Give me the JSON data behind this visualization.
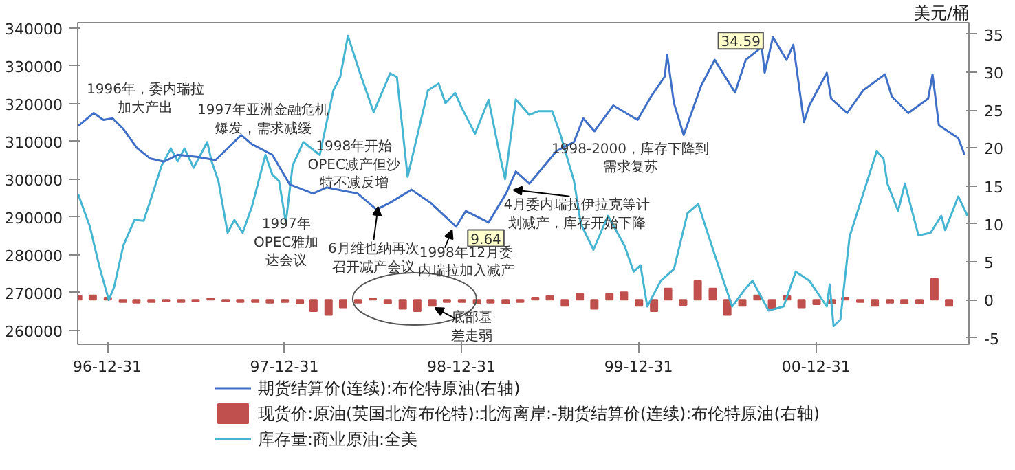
{
  "chart_data": {
    "type": "line",
    "xlim": [
      "1996-10-31",
      "2001-11-11"
    ],
    "xticks": [
      {
        "value": "1996-12-31",
        "label": "96-12-31"
      },
      {
        "value": "1997-12-31",
        "label": "97-12-31"
      },
      {
        "value": "1998-12-31",
        "label": "98-12-31"
      },
      {
        "value": "1999-12-31",
        "label": "99-12-31"
      },
      {
        "value": "2000-12-31",
        "label": "00-12-31"
      }
    ],
    "ylim": [
      256300,
      341400
    ],
    "yticks": [
      260000,
      270000,
      280000,
      290000,
      300000,
      310000,
      320000,
      330000,
      340000
    ],
    "y2lim": [
      -5.85,
      36.5
    ],
    "y2ticks": [
      -5,
      0,
      5,
      10,
      15,
      20,
      25,
      30,
      35
    ],
    "y2label": "美元/桶",
    "grid": false,
    "legend": "bottom",
    "series": [
      {
        "name": "期货结算价(连续):布伦特原油(右轴)",
        "axis": "y2",
        "color": "#3f6fc6",
        "x": [
          "1996-11-01",
          "1996-12-03",
          "1996-12-23",
          "1997-01-11",
          "1997-02-02",
          "1997-03-02",
          "1997-03-30",
          "1997-04-27",
          "1997-05-25",
          "1997-07-06",
          "1997-08-11",
          "1997-10-03",
          "1997-10-25",
          "1997-12-06",
          "1998-01-11",
          "1998-02-28",
          "1998-03-28",
          "1998-05-31",
          "1998-07-09",
          "1998-08-06",
          "1998-09-19",
          "1998-10-28",
          "1998-12-20",
          "1999-01-09",
          "1999-02-25",
          "1999-04-02",
          "1999-04-22",
          "1999-05-20",
          "1999-07-15",
          "1999-08-20",
          "1999-09-08",
          "1999-10-01",
          "1999-11-09",
          "1999-12-29",
          "2000-01-26",
          "2000-02-23",
          "2000-02-28",
          "2000-03-13",
          "2000-04-02",
          "2000-05-08",
          "2000-06-05",
          "2000-07-17",
          "2000-08-08",
          "2000-09-10",
          "2000-09-16",
          "2000-10-03",
          "2000-10-31",
          "2000-11-14",
          "2000-12-06",
          "2000-12-17",
          "2001-01-22",
          "2001-01-31",
          "2001-03-05",
          "2001-04-07",
          "2001-05-22",
          "2001-06-05",
          "2001-07-09",
          "2001-08-19",
          "2001-08-28",
          "2001-09-10",
          "2001-10-20",
          "2001-11-02"
        ],
        "values": [
          22.9,
          24.6,
          23.7,
          23.9,
          22.5,
          20.0,
          18.6,
          18.2,
          19.1,
          18.8,
          18.4,
          21.7,
          20.5,
          19.1,
          15.2,
          14.0,
          14.8,
          14.0,
          11.9,
          12.8,
          14.5,
          12.8,
          9.64,
          11.7,
          10.2,
          14.0,
          16.9,
          15.3,
          19.6,
          20.8,
          23.9,
          22.2,
          25.6,
          23.7,
          26.8,
          29.4,
          32.3,
          25.9,
          21.7,
          28.2,
          31.6,
          27.3,
          31.6,
          33.3,
          29.9,
          34.59,
          31.6,
          33.6,
          23.4,
          25.6,
          29.9,
          26.5,
          24.6,
          27.6,
          29.7,
          26.8,
          24.6,
          26.5,
          29.7,
          23.0,
          21.3,
          19.1
        ]
      },
      {
        "name": "现货价:原油(英国北海布伦特):北海离岸:-期货结算价(连续):布伦特原油(右轴)",
        "type": "bar",
        "axis": "y2",
        "color": "#c0504d",
        "x": [
          "1996-11",
          "1996-12",
          "1997-01",
          "1997-02",
          "1997-03",
          "1997-04",
          "1997-05",
          "1997-06",
          "1997-07",
          "1997-08",
          "1997-09",
          "1997-10",
          "1997-11",
          "1997-12",
          "1998-01",
          "1998-02",
          "1998-03",
          "1998-04",
          "1998-05",
          "1998-06",
          "1998-07",
          "1998-08",
          "1998-09",
          "1998-10",
          "1998-11",
          "1998-12",
          "1999-01",
          "1999-02",
          "1999-03",
          "1999-04",
          "1999-05",
          "1999-06",
          "1999-07",
          "1999-08",
          "1999-09",
          "1999-10",
          "1999-11",
          "1999-12",
          "2000-01",
          "2000-02",
          "2000-03",
          "2000-04",
          "2000-05",
          "2000-06",
          "2000-07",
          "2000-08",
          "2000-09",
          "2000-10",
          "2000-11",
          "2000-12",
          "2001-01",
          "2001-02",
          "2001-03",
          "2001-04",
          "2001-05",
          "2001-06",
          "2001-07",
          "2001-08",
          "2001-09",
          "2001-10"
        ],
        "values": [
          0.5,
          0.6,
          0.3,
          -0.3,
          -0.4,
          -0.3,
          -0.2,
          -0.3,
          -0.2,
          0.2,
          -0.2,
          -0.3,
          -0.3,
          -0.4,
          -0.3,
          -0.5,
          -1.5,
          -2.0,
          -1.0,
          -0.4,
          0.2,
          -0.5,
          -1.2,
          -1.5,
          -0.8,
          -0.3,
          -0.3,
          -0.5,
          -0.4,
          -0.5,
          -0.3,
          0.3,
          0.5,
          -0.8,
          0.8,
          -1.2,
          0.8,
          1.0,
          -0.8,
          -1.5,
          1.5,
          -0.7,
          2.5,
          1.5,
          -2.0,
          -0.8,
          0.6,
          -1.2,
          0.5,
          -1.0,
          -0.6,
          -0.5,
          0.3,
          -0.3,
          -0.8,
          -0.4,
          -0.5,
          -0.5,
          2.8,
          -0.8
        ]
      },
      {
        "name": "库存量:商业原油:全美",
        "color": "#45b5d1",
        "x": [
          "1996-11-01",
          "1996-11-25",
          "1996-12-14",
          "1997-01-03",
          "1997-01-14",
          "1997-02-02",
          "1997-02-25",
          "1997-03-16",
          "1997-03-30",
          "1997-04-22",
          "1997-05-11",
          "1997-05-25",
          "1997-06-08",
          "1997-06-27",
          "1997-07-25",
          "1997-08-03",
          "1997-08-17",
          "1997-09-05",
          "1997-09-19",
          "1997-10-06",
          "1997-10-25",
          "1997-11-22",
          "1997-12-06",
          "1997-12-20",
          "1998-01-03",
          "1998-01-17",
          "1998-02-08",
          "1998-03-14",
          "1998-04-11",
          "1998-04-25",
          "1998-05-11",
          "1998-06-05",
          "1998-07-03",
          "1998-08-06",
          "1998-08-20",
          "1998-09-11",
          "1998-10-23",
          "1998-11-14",
          "1998-11-28",
          "1998-12-18",
          "1998-12-31",
          "1999-01-28",
          "1999-02-25",
          "1999-03-19",
          "1999-03-31",
          "1999-04-22",
          "1999-05-20",
          "1999-06-08",
          "1999-07-06",
          "1999-07-22",
          "1999-08-20",
          "1999-09-03",
          "1999-09-29",
          "1999-10-29",
          "1999-12-02",
          "1999-12-21",
          "2000-01-04",
          "2000-01-18",
          "2000-02-15",
          "2000-03-13",
          "2000-04-10",
          "2000-05-02",
          "2000-06-05",
          "2000-07-11",
          "2000-08-08",
          "2000-08-22",
          "2000-09-24",
          "2000-10-25",
          "2000-11-19",
          "2000-12-17",
          "2001-01-22",
          "2001-01-28",
          "2001-02-05",
          "2001-02-19",
          "2001-03-10",
          "2001-04-07",
          "2001-05-05",
          "2001-05-19",
          "2001-05-27",
          "2001-06-18",
          "2001-07-02",
          "2001-07-30",
          "2001-08-24",
          "2001-09-15",
          "2001-09-23",
          "2001-10-20",
          "2001-11-08"
        ],
        "values": [
          296000,
          287500,
          277200,
          268000,
          271400,
          282400,
          289200,
          289000,
          294400,
          303600,
          308100,
          304700,
          308100,
          303000,
          309800,
          304700,
          299500,
          285800,
          289200,
          285800,
          292700,
          306400,
          301200,
          299500,
          288500,
          303600,
          309800,
          306400,
          323500,
          327000,
          337900,
          328000,
          317700,
          328000,
          327000,
          300600,
          323500,
          325300,
          320100,
          322800,
          319000,
          312000,
          321000,
          307000,
          300000,
          321100,
          317000,
          318000,
          318000,
          312200,
          299500,
          288200,
          281300,
          290300,
          282400,
          275500,
          277200,
          266300,
          273100,
          276200,
          291000,
          293400,
          280000,
          266300,
          271100,
          273100,
          265200,
          266300,
          275500,
          273100,
          266300,
          272100,
          261100,
          262800,
          284800,
          296100,
          307400,
          305400,
          298800,
          291600,
          298800,
          285100,
          285800,
          290300,
          286500,
          295400,
          290300
        ]
      }
    ],
    "annotations": [
      "1996年，委内瑞拉加大产出",
      "1997年亚洲金融危机爆发，需求减缓",
      "1998年开始OPEC减产但沙特不减反增",
      "1997年OPEC雅加达会议",
      "6月维也纳再次召开减产会议",
      "1998年12月委内瑞拉加入减产",
      "4月委内瑞拉伊拉克等计划减产，库存开始下降",
      "1998-2000，库存下降到需求复苏",
      "34.59",
      "9.64",
      "底部基差走弱"
    ]
  }
}
